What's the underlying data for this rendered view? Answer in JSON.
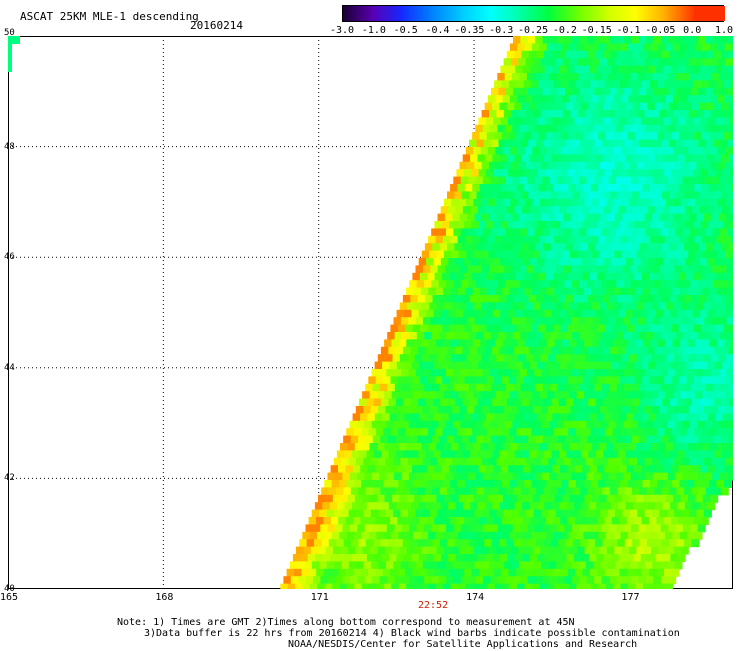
{
  "header": {
    "title": "ASCAT 25KM MLE-1 descending",
    "date": "20160214"
  },
  "colorbar": {
    "labels": [
      "-3.0",
      "-1.0",
      "-0.5",
      "-0.4",
      "-0.35",
      "-0.3",
      "-0.25",
      "-0.2",
      "-0.15",
      "-0.1",
      "-0.05",
      "0.0",
      "1.0"
    ],
    "colors": [
      "#1a0033",
      "#5a00b4",
      "#1428ff",
      "#0080ff",
      "#00c8ff",
      "#00ffff",
      "#00ffaa",
      "#00ff40",
      "#6aff00",
      "#ccff00",
      "#ffff00",
      "#ffaa00",
      "#ff3000"
    ]
  },
  "map": {
    "lat_labels": [
      "50",
      "48",
      "46",
      "44",
      "42",
      "40"
    ],
    "lon_labels": [
      "165",
      "168",
      "171",
      "174",
      "177"
    ],
    "time_label": "22:52"
  },
  "notes": {
    "line1": "Note: 1) Times are GMT 2)Times along bottom correspond to measurement at 45N",
    "line2": "3)Data buffer is 22 hrs from 20160214 4) Black wind barbs indicate possible contamination",
    "line3": "NOAA/NESDIS/Center for Satellite Applications and Research"
  }
}
